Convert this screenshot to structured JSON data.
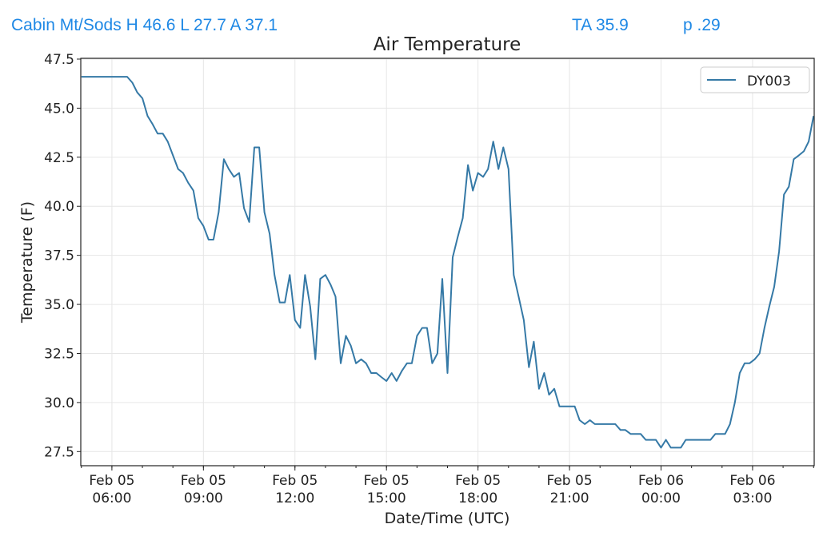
{
  "header": {
    "station_summary": "Cabin Mt/Sods H 46.6 L 27.7 A 37.1",
    "ta": "TA 35.9",
    "precip": "p .29"
  },
  "colors": {
    "header_text": "#1e88e5",
    "series_line": "#3579a6",
    "grid": "#e6e6e6"
  },
  "chart_data": {
    "type": "line",
    "title": "Air Temperature",
    "xlabel": "Date/Time (UTC)",
    "ylabel": "Temperature (F)",
    "x_units": "hours since Feb 05 00:00 UTC",
    "xlim": [
      4.98,
      29.02
    ],
    "ylim": [
      26.78,
      47.54
    ],
    "grid": true,
    "legend_position": "top-right",
    "yticks": [
      27.5,
      30.0,
      32.5,
      35.0,
      37.5,
      40.0,
      42.5,
      45.0,
      47.5
    ],
    "ytick_labels": [
      "27.5",
      "30.0",
      "32.5",
      "35.0",
      "37.5",
      "40.0",
      "42.5",
      "45.0",
      "47.5"
    ],
    "xticks": [
      6,
      9,
      12,
      15,
      18,
      21,
      24,
      27
    ],
    "xtick_labels": [
      [
        "Feb 05",
        "06:00"
      ],
      [
        "Feb 05",
        "09:00"
      ],
      [
        "Feb 05",
        "12:00"
      ],
      [
        "Feb 05",
        "15:00"
      ],
      [
        "Feb 05",
        "18:00"
      ],
      [
        "Feb 05",
        "21:00"
      ],
      [
        "Feb 06",
        "00:00"
      ],
      [
        "Feb 06",
        "03:00"
      ]
    ],
    "series": [
      {
        "name": "DY003",
        "points": [
          [
            5.0,
            46.6
          ],
          [
            6.5,
            46.6
          ],
          [
            6.67,
            46.3
          ],
          [
            6.83,
            45.8
          ],
          [
            7.0,
            45.5
          ],
          [
            7.17,
            44.6
          ],
          [
            7.33,
            44.2
          ],
          [
            7.5,
            43.7
          ],
          [
            7.67,
            43.7
          ],
          [
            7.83,
            43.3
          ],
          [
            8.0,
            42.6
          ],
          [
            8.17,
            41.9
          ],
          [
            8.33,
            41.7
          ],
          [
            8.5,
            41.2
          ],
          [
            8.67,
            40.8
          ],
          [
            8.83,
            39.4
          ],
          [
            9.0,
            39.0
          ],
          [
            9.17,
            38.3
          ],
          [
            9.33,
            38.3
          ],
          [
            9.5,
            39.7
          ],
          [
            9.67,
            42.4
          ],
          [
            9.83,
            41.9
          ],
          [
            10.0,
            41.5
          ],
          [
            10.17,
            41.7
          ],
          [
            10.33,
            39.9
          ],
          [
            10.5,
            39.2
          ],
          [
            10.67,
            43.0
          ],
          [
            10.83,
            43.0
          ],
          [
            11.0,
            39.7
          ],
          [
            11.17,
            38.6
          ],
          [
            11.33,
            36.5
          ],
          [
            11.5,
            35.1
          ],
          [
            11.67,
            35.1
          ],
          [
            11.83,
            36.5
          ],
          [
            12.0,
            34.2
          ],
          [
            12.17,
            33.8
          ],
          [
            12.33,
            36.5
          ],
          [
            12.5,
            34.9
          ],
          [
            12.67,
            32.2
          ],
          [
            12.83,
            36.3
          ],
          [
            13.0,
            36.5
          ],
          [
            13.17,
            36.0
          ],
          [
            13.33,
            35.4
          ],
          [
            13.5,
            32.0
          ],
          [
            13.67,
            33.4
          ],
          [
            13.83,
            32.9
          ],
          [
            14.0,
            32.0
          ],
          [
            14.17,
            32.2
          ],
          [
            14.33,
            32.0
          ],
          [
            14.5,
            31.5
          ],
          [
            14.67,
            31.5
          ],
          [
            14.83,
            31.3
          ],
          [
            15.0,
            31.1
          ],
          [
            15.17,
            31.5
          ],
          [
            15.33,
            31.1
          ],
          [
            15.5,
            31.6
          ],
          [
            15.67,
            32.0
          ],
          [
            15.83,
            32.0
          ],
          [
            16.0,
            33.4
          ],
          [
            16.17,
            33.8
          ],
          [
            16.33,
            33.8
          ],
          [
            16.5,
            32.0
          ],
          [
            16.67,
            32.5
          ],
          [
            16.83,
            36.3
          ],
          [
            17.0,
            31.5
          ],
          [
            17.17,
            37.4
          ],
          [
            17.33,
            38.4
          ],
          [
            17.5,
            39.4
          ],
          [
            17.67,
            42.1
          ],
          [
            17.83,
            40.8
          ],
          [
            18.0,
            41.7
          ],
          [
            18.17,
            41.5
          ],
          [
            18.33,
            41.9
          ],
          [
            18.5,
            43.3
          ],
          [
            18.67,
            41.9
          ],
          [
            18.83,
            43.0
          ],
          [
            19.0,
            41.9
          ],
          [
            19.17,
            36.5
          ],
          [
            19.33,
            35.4
          ],
          [
            19.5,
            34.2
          ],
          [
            19.67,
            31.8
          ],
          [
            19.83,
            33.1
          ],
          [
            20.0,
            30.7
          ],
          [
            20.17,
            31.5
          ],
          [
            20.33,
            30.4
          ],
          [
            20.5,
            30.7
          ],
          [
            20.67,
            29.8
          ],
          [
            21.17,
            29.8
          ],
          [
            21.33,
            29.1
          ],
          [
            21.5,
            28.9
          ],
          [
            21.67,
            29.1
          ],
          [
            21.83,
            28.9
          ],
          [
            22.5,
            28.9
          ],
          [
            22.67,
            28.6
          ],
          [
            22.83,
            28.6
          ],
          [
            23.0,
            28.4
          ],
          [
            23.33,
            28.4
          ],
          [
            23.5,
            28.1
          ],
          [
            23.83,
            28.1
          ],
          [
            24.0,
            27.7
          ],
          [
            24.16,
            28.1
          ],
          [
            24.32,
            27.7
          ],
          [
            24.65,
            27.7
          ],
          [
            24.81,
            28.1
          ],
          [
            25.62,
            28.1
          ],
          [
            25.78,
            28.4
          ],
          [
            26.1,
            28.4
          ],
          [
            26.26,
            28.9
          ],
          [
            26.42,
            30.0
          ],
          [
            26.58,
            31.5
          ],
          [
            26.74,
            32.0
          ],
          [
            26.9,
            32.0
          ],
          [
            27.07,
            32.2
          ],
          [
            27.23,
            32.5
          ],
          [
            27.39,
            33.8
          ],
          [
            27.55,
            34.9
          ],
          [
            27.71,
            35.9
          ],
          [
            27.87,
            37.7
          ],
          [
            28.03,
            40.6
          ],
          [
            28.19,
            41.0
          ],
          [
            28.35,
            42.4
          ],
          [
            28.52,
            42.6
          ],
          [
            28.68,
            42.8
          ],
          [
            28.84,
            43.3
          ],
          [
            29.0,
            44.6
          ]
        ]
      }
    ]
  }
}
